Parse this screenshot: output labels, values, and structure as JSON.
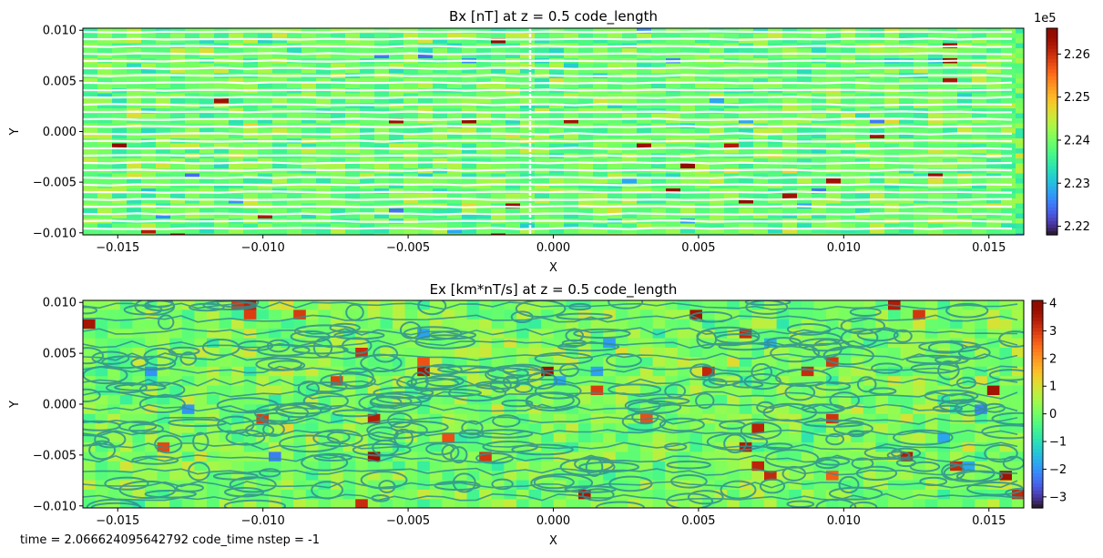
{
  "footer": "time = 2.066624095642792 code_time nstep = -1",
  "chart_data": [
    {
      "type": "heatmap",
      "title": "Bx [nT] at z = 0.5 code_length",
      "xlabel": "X",
      "ylabel": "Y",
      "xlim": [
        -0.0162,
        0.0162
      ],
      "ylim": [
        -0.0102,
        0.0102
      ],
      "x_ticks": [
        -0.015,
        -0.01,
        -0.005,
        0.0,
        0.005,
        0.01,
        0.015
      ],
      "x_tick_labels": [
        "−0.015",
        "−0.010",
        "−0.005",
        "0.000",
        "0.005",
        "0.010",
        "0.015"
      ],
      "y_ticks": [
        0.01,
        0.005,
        0.0,
        -0.005,
        -0.01
      ],
      "y_tick_labels": [
        "0.010",
        "0.005",
        "0.000",
        "−0.005",
        "−0.010"
      ],
      "colormap": "turbo",
      "colorbar": {
        "min": 2.218,
        "max": 2.266,
        "ticks": [
          2.22,
          2.23,
          2.24,
          2.25,
          2.26
        ],
        "tick_labels": [
          "2.22",
          "2.23",
          "2.24",
          "2.25",
          "2.26"
        ],
        "offset_label": "1e5"
      },
      "overlay": "streamlines",
      "overlay_color": "#ffffff"
    },
    {
      "type": "heatmap",
      "title": "Ex [km*nT/s] at z = 0.5 code_length",
      "xlabel": "X",
      "ylabel": "Y",
      "xlim": [
        -0.0162,
        0.0162
      ],
      "ylim": [
        -0.0102,
        0.0102
      ],
      "x_ticks": [
        -0.015,
        -0.01,
        -0.005,
        0.0,
        0.005,
        0.01,
        0.015
      ],
      "x_tick_labels": [
        "−0.015",
        "−0.010",
        "−0.005",
        "0.000",
        "0.005",
        "0.010",
        "0.015"
      ],
      "y_ticks": [
        0.01,
        0.005,
        0.0,
        -0.005,
        -0.01
      ],
      "y_tick_labels": [
        "0.010",
        "0.005",
        "0.000",
        "−0.005",
        "−0.010"
      ],
      "colormap": "turbo",
      "colorbar": {
        "min": -3.4,
        "max": 4.1,
        "ticks": [
          4,
          3,
          2,
          1,
          0,
          -1,
          -2,
          -3
        ],
        "tick_labels": [
          "4",
          "3",
          "2",
          "1",
          "0",
          "−1",
          "−2",
          "−3"
        ],
        "offset_label": ""
      },
      "overlay": "contours",
      "overlay_color": "#2f8f8f"
    }
  ]
}
